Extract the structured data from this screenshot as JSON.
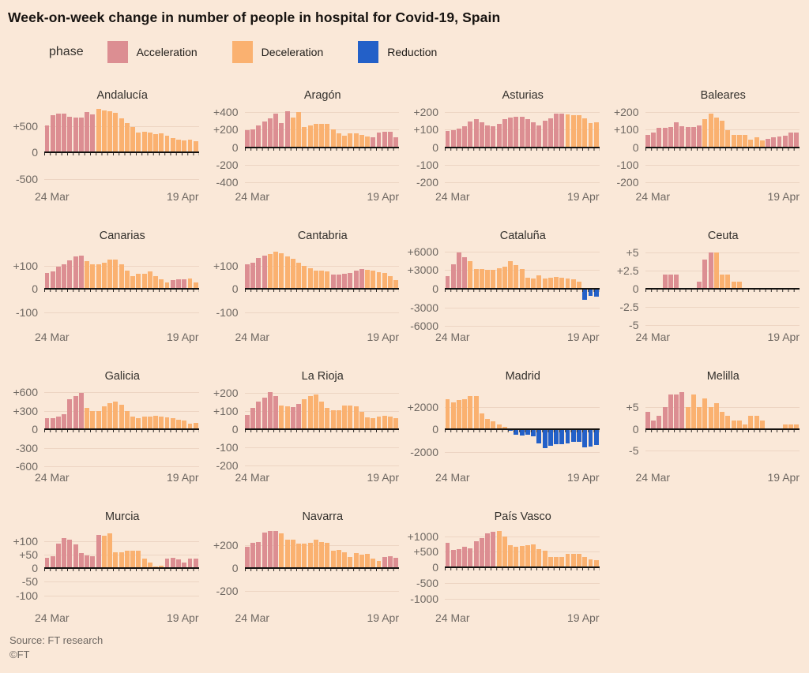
{
  "title": "Week-on-week change in number of people in hospital for Covid-19, Spain",
  "legend": {
    "label": "phase",
    "items": [
      {
        "name": "Acceleration",
        "color": "#DC8E92"
      },
      {
        "name": "Deceleration",
        "color": "#FAB170"
      },
      {
        "name": "Reduction",
        "color": "#2360C8"
      }
    ]
  },
  "colors": {
    "background": "#FAE8D8",
    "acceleration": "#DC8E92",
    "deceleration": "#FAB170",
    "reduction": "#2360C8",
    "gridline": "#EDD5C3",
    "zero_axis": "#141210",
    "axis_text": "#6F6862"
  },
  "phase_key": {
    "a": "Acceleration",
    "d": "Deceleration",
    "r": "Reduction"
  },
  "x_axis": {
    "start": "24 Mar",
    "end": "19 Apr",
    "n_days": 27
  },
  "source": "Source: FT research",
  "copyright": "©FT",
  "chart_data": [
    {
      "type": "bar",
      "title": "Andalucía",
      "ylim": [
        -650,
        900
      ],
      "ticks": [
        {
          "v": 500,
          "label": "+500"
        },
        {
          "v": 0,
          "label": "0"
        },
        {
          "v": -500,
          "label": "-500"
        }
      ],
      "x_start": "24 Mar",
      "x_end": "19 Apr",
      "values": [
        520,
        700,
        730,
        730,
        680,
        660,
        660,
        760,
        720,
        820,
        790,
        780,
        750,
        650,
        560,
        480,
        380,
        390,
        380,
        350,
        370,
        320,
        270,
        250,
        230,
        250,
        210
      ],
      "phases": "aaaaaaaaadddddddddddddddddd"
    },
    {
      "type": "bar",
      "title": "Aragón",
      "ylim": [
        -450,
        480
      ],
      "ticks": [
        {
          "v": 400,
          "label": "+400"
        },
        {
          "v": 200,
          "label": "+200"
        },
        {
          "v": 0,
          "label": "0"
        },
        {
          "v": -200,
          "label": "-200"
        },
        {
          "v": -400,
          "label": "-400"
        }
      ],
      "x_start": "24 Mar",
      "x_end": "19 Apr",
      "values": [
        195,
        205,
        250,
        290,
        330,
        380,
        270,
        405,
        340,
        400,
        230,
        250,
        265,
        265,
        265,
        200,
        160,
        130,
        160,
        155,
        140,
        120,
        110,
        165,
        180,
        175,
        110
      ],
      "phases": "aaaaaaaaddddddddddddddaaaaa"
    },
    {
      "type": "bar",
      "title": "Asturias",
      "ylim": [
        -225,
        240
      ],
      "ticks": [
        {
          "v": 200,
          "label": "+200"
        },
        {
          "v": 100,
          "label": "+100"
        },
        {
          "v": 0,
          "label": "0"
        },
        {
          "v": -100,
          "label": "-100"
        },
        {
          "v": -200,
          "label": "-200"
        }
      ],
      "x_start": "24 Mar",
      "x_end": "19 Apr",
      "values": [
        92,
        95,
        105,
        120,
        145,
        160,
        140,
        122,
        120,
        132,
        160,
        170,
        175,
        172,
        160,
        140,
        125,
        150,
        165,
        192,
        190,
        188,
        183,
        182,
        165,
        135,
        140
      ],
      "phases": "aaaaaaaaaaaaaaaaaaaaadddddd"
    },
    {
      "type": "bar",
      "title": "Baleares",
      "ylim": [
        -225,
        240
      ],
      "ticks": [
        {
          "v": 200,
          "label": "+200"
        },
        {
          "v": 100,
          "label": "+100"
        },
        {
          "v": 0,
          "label": "0"
        },
        {
          "v": -100,
          "label": "-100"
        },
        {
          "v": -200,
          "label": "-200"
        }
      ],
      "x_start": "24 Mar",
      "x_end": "19 Apr",
      "values": [
        68,
        85,
        110,
        112,
        115,
        140,
        120,
        115,
        115,
        122,
        160,
        190,
        168,
        150,
        95,
        72,
        68,
        72,
        45,
        55,
        38,
        48,
        55,
        60,
        65,
        82,
        85
      ],
      "phases": "aaaaaaaaaadddddddddddaaaaaa"
    },
    {
      "type": "bar",
      "title": "Canarias",
      "ylim": [
        -165,
        188
      ],
      "ticks": [
        {
          "v": 100,
          "label": "+100"
        },
        {
          "v": 0,
          "label": "0"
        },
        {
          "v": -100,
          "label": "-100"
        }
      ],
      "x_start": "24 Mar",
      "x_end": "19 Apr",
      "values": [
        68,
        75,
        95,
        105,
        125,
        140,
        145,
        120,
        108,
        108,
        115,
        128,
        128,
        105,
        80,
        55,
        65,
        65,
        75,
        55,
        42,
        30,
        40,
        42,
        42,
        45,
        28
      ],
      "phases": "aaaaaaadddddddddddddddaaadd"
    },
    {
      "type": "bar",
      "title": "Cantabria",
      "ylim": [
        -165,
        188
      ],
      "ticks": [
        {
          "v": 100,
          "label": "+100"
        },
        {
          "v": 0,
          "label": "0"
        },
        {
          "v": -100,
          "label": "-100"
        }
      ],
      "x_start": "24 Mar",
      "x_end": "19 Apr",
      "values": [
        108,
        115,
        135,
        145,
        150,
        160,
        155,
        140,
        130,
        115,
        100,
        90,
        80,
        78,
        75,
        62,
        62,
        65,
        70,
        78,
        85,
        82,
        80,
        72,
        68,
        55,
        40
      ],
      "phases": "aaaadddddddddddaaaaaadddddd"
    },
    {
      "type": "bar",
      "title": "Cataluña",
      "ylim": [
        -6200,
        6960
      ],
      "ticks": [
        {
          "v": 6000,
          "label": "+6000"
        },
        {
          "v": 3000,
          "label": "+3000"
        },
        {
          "v": 0,
          "label": "0"
        },
        {
          "v": -3000,
          "label": "-3000"
        },
        {
          "v": -6000,
          "label": "-6000"
        }
      ],
      "x_start": "24 Mar",
      "x_end": "19 Apr",
      "values": [
        2000,
        3900,
        5800,
        5000,
        4400,
        3200,
        3200,
        3100,
        3000,
        3300,
        3600,
        4400,
        3800,
        3200,
        1800,
        1700,
        2100,
        1600,
        1800,
        1900,
        1800,
        1600,
        1500,
        1200,
        -1800,
        -1200,
        -1300
      ],
      "phases": "aaaaddddddddddddddddddddrrr"
    },
    {
      "type": "bar",
      "title": "Ceuta",
      "ylim": [
        -5.3,
        6
      ],
      "ticks": [
        {
          "v": 5,
          "label": "+5"
        },
        {
          "v": 2.5,
          "label": "+2.5"
        },
        {
          "v": 0,
          "label": "0"
        },
        {
          "v": -2.5,
          "label": "-2.5"
        },
        {
          "v": -5,
          "label": "-5"
        }
      ],
      "x_start": "24 Mar",
      "x_end": "19 Apr",
      "values": [
        0,
        0,
        0,
        2,
        2,
        2,
        0,
        0,
        0,
        1,
        4,
        5,
        5,
        2,
        2,
        1,
        1,
        0,
        0,
        0,
        0,
        0,
        0,
        0,
        0,
        0,
        0
      ],
      "phases": "dddaaadddaaaddddddddddddddd"
    },
    {
      "type": "bar",
      "title": "Galicia",
      "ylim": [
        -620,
        700
      ],
      "ticks": [
        {
          "v": 600,
          "label": "+600"
        },
        {
          "v": 300,
          "label": "+300"
        },
        {
          "v": 0,
          "label": "0"
        },
        {
          "v": -300,
          "label": "-300"
        },
        {
          "v": -600,
          "label": "-600"
        }
      ],
      "x_start": "24 Mar",
      "x_end": "19 Apr",
      "values": [
        175,
        185,
        210,
        240,
        490,
        540,
        590,
        350,
        300,
        300,
        370,
        420,
        440,
        390,
        290,
        200,
        185,
        200,
        200,
        220,
        200,
        195,
        175,
        160,
        140,
        90,
        100
      ],
      "phases": "aaaaaaadddddddddddddddddddd"
    },
    {
      "type": "bar",
      "title": "La Rioja",
      "ylim": [
        -212,
        238
      ],
      "ticks": [
        {
          "v": 200,
          "label": "+200"
        },
        {
          "v": 100,
          "label": "+100"
        },
        {
          "v": 0,
          "label": "0"
        },
        {
          "v": -100,
          "label": "-100"
        },
        {
          "v": -200,
          "label": "-200"
        }
      ],
      "x_start": "24 Mar",
      "x_end": "19 Apr",
      "values": [
        78,
        118,
        150,
        175,
        205,
        180,
        130,
        125,
        122,
        140,
        165,
        180,
        190,
        150,
        115,
        105,
        105,
        130,
        128,
        125,
        95,
        65,
        62,
        68,
        72,
        70,
        62
      ],
      "phases": "aaaaaaddaaddddddddddddddddd"
    },
    {
      "type": "bar",
      "title": "Madrid",
      "ylim": [
        -3440,
        3880
      ],
      "ticks": [
        {
          "v": 2000,
          "label": "+2000"
        },
        {
          "v": 0,
          "label": "0"
        },
        {
          "v": -2000,
          "label": "-2000"
        }
      ],
      "x_start": "24 Mar",
      "x_end": "19 Apr",
      "values": [
        2700,
        2400,
        2600,
        2700,
        3000,
        2950,
        1450,
        900,
        700,
        450,
        250,
        -100,
        -450,
        -550,
        -450,
        -650,
        -1250,
        -1650,
        -1500,
        -1350,
        -1300,
        -1250,
        -1100,
        -1150,
        -1600,
        -1550,
        -1400
      ],
      "phases": "dddddddddddrrrrrrrrrrrrrrrr"
    },
    {
      "type": "bar",
      "title": "Melilla",
      "ylim": [
        -9,
        10
      ],
      "ticks": [
        {
          "v": 5,
          "label": "+5"
        },
        {
          "v": 0,
          "label": "0"
        },
        {
          "v": -5,
          "label": "-5"
        }
      ],
      "x_start": "24 Mar",
      "x_end": "19 Apr",
      "values": [
        4,
        2,
        3,
        5,
        8,
        8,
        8.5,
        5,
        8,
        5,
        7,
        5,
        6,
        4,
        3,
        2,
        2,
        1,
        3,
        3,
        2,
        0,
        0,
        0,
        1,
        1,
        1
      ],
      "phases": "aaaaaaadddddddddddddddddddd"
    },
    {
      "type": "bar",
      "title": "Murcia",
      "ylim": [
        -148,
        155
      ],
      "ticks": [
        {
          "v": 100,
          "label": "+100"
        },
        {
          "v": 50,
          "label": "+50"
        },
        {
          "v": 0,
          "label": "0"
        },
        {
          "v": -50,
          "label": "-50"
        },
        {
          "v": -100,
          "label": "-100"
        }
      ],
      "x_start": "24 Mar",
      "x_end": "19 Apr",
      "values": [
        38,
        45,
        92,
        110,
        105,
        88,
        55,
        48,
        45,
        122,
        120,
        128,
        58,
        60,
        65,
        65,
        65,
        35,
        20,
        5,
        10,
        35,
        38,
        32,
        20,
        35,
        35
      ],
      "phases": "aaaaaaaaaadddddddddddaaaaaa"
    },
    {
      "type": "bar",
      "title": "Navarra",
      "ylim": [
        -350,
        364
      ],
      "ticks": [
        {
          "v": 200,
          "label": "+200"
        },
        {
          "v": 0,
          "label": "0"
        },
        {
          "v": -200,
          "label": "-200"
        }
      ],
      "x_start": "24 Mar",
      "x_end": "19 Apr",
      "values": [
        185,
        220,
        225,
        310,
        320,
        325,
        305,
        250,
        245,
        210,
        215,
        220,
        250,
        225,
        220,
        150,
        155,
        135,
        95,
        130,
        120,
        125,
        80,
        65,
        95,
        105,
        90
      ],
      "phases": "aaaaaaddddddddddddddddddaaa"
    },
    {
      "type": "bar",
      "title": "País Vasco",
      "ylim": [
        -1300,
        1316
      ],
      "ticks": [
        {
          "v": 1000,
          "label": "+1000"
        },
        {
          "v": 500,
          "label": "+500"
        },
        {
          "v": 0,
          "label": "0"
        },
        {
          "v": -500,
          "label": "-500"
        },
        {
          "v": -1000,
          "label": "-1000"
        }
      ],
      "x_start": "24 Mar",
      "x_end": "19 Apr",
      "values": [
        780,
        560,
        580,
        650,
        620,
        850,
        950,
        1100,
        1150,
        1170,
        1000,
        700,
        650,
        680,
        700,
        730,
        580,
        540,
        330,
        340,
        330,
        440,
        440,
        430,
        330,
        260,
        240
      ],
      "phases": "aaaaaaaaadddddddddddddddddd"
    }
  ]
}
